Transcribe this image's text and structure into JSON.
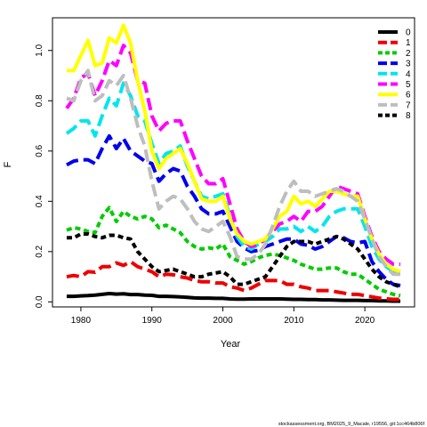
{
  "chart_data": {
    "type": "line",
    "xlabel": "Year",
    "ylabel": "F",
    "xlim": [
      1976,
      2027
    ],
    "ylim": [
      -0.02,
      1.13
    ],
    "xticks": [
      1980,
      1990,
      2000,
      2010,
      2020
    ],
    "yticks": [
      0.0,
      0.2,
      0.4,
      0.6,
      0.8,
      1.0
    ],
    "ytick_labels": [
      "0.0",
      "0.2",
      "0.4",
      "0.6",
      "0.8",
      "1.0"
    ],
    "legend_position": "top-right",
    "grid": false,
    "footer": "stockassessment.org, BM2025_9_Macale, r19556, git:1cc464b806f",
    "x": [
      1978,
      1979,
      1980,
      1981,
      1982,
      1983,
      1984,
      1985,
      1986,
      1987,
      1988,
      1989,
      1990,
      1991,
      1992,
      1993,
      1994,
      1995,
      1996,
      1997,
      1998,
      1999,
      2000,
      2001,
      2002,
      2003,
      2004,
      2005,
      2006,
      2007,
      2008,
      2009,
      2010,
      2011,
      2012,
      2013,
      2014,
      2015,
      2016,
      2017,
      2018,
      2019,
      2020,
      2021,
      2022,
      2023,
      2024,
      2025
    ],
    "series": [
      {
        "name": "0",
        "color": "#000000",
        "dash": "solid",
        "values": [
          0.022,
          0.022,
          0.024,
          0.025,
          0.027,
          0.03,
          0.033,
          0.031,
          0.032,
          0.029,
          0.029,
          0.027,
          0.026,
          0.022,
          0.022,
          0.021,
          0.02,
          0.018,
          0.016,
          0.015,
          0.015,
          0.014,
          0.014,
          0.012,
          0.011,
          0.011,
          0.012,
          0.012,
          0.012,
          0.012,
          0.012,
          0.011,
          0.01,
          0.01,
          0.009,
          0.009,
          0.008,
          0.008,
          0.007,
          0.006,
          0.006,
          0.006,
          0.005,
          0.005,
          0.004,
          0.004,
          0.003,
          0.003
        ]
      },
      {
        "name": "1",
        "color": "#ee0000",
        "dash": "long",
        "values": [
          0.1,
          0.105,
          0.1,
          0.12,
          0.118,
          0.14,
          0.14,
          0.155,
          0.145,
          0.16,
          0.14,
          0.13,
          0.12,
          0.1,
          0.11,
          0.108,
          0.1,
          0.095,
          0.085,
          0.08,
          0.08,
          0.075,
          0.075,
          0.06,
          0.055,
          0.045,
          0.055,
          0.07,
          0.085,
          0.085,
          0.085,
          0.07,
          0.07,
          0.06,
          0.055,
          0.045,
          0.045,
          0.045,
          0.04,
          0.035,
          0.03,
          0.03,
          0.025,
          0.02,
          0.015,
          0.012,
          0.01,
          0.01
        ]
      },
      {
        "name": "2",
        "color": "#00cc00",
        "dash": "dash",
        "values": [
          0.285,
          0.295,
          0.29,
          0.28,
          0.275,
          0.34,
          0.375,
          0.32,
          0.36,
          0.34,
          0.33,
          0.34,
          0.33,
          0.295,
          0.305,
          0.29,
          0.275,
          0.24,
          0.22,
          0.21,
          0.215,
          0.21,
          0.23,
          0.18,
          0.165,
          0.15,
          0.16,
          0.175,
          0.185,
          0.19,
          0.185,
          0.175,
          0.165,
          0.15,
          0.14,
          0.13,
          0.13,
          0.135,
          0.135,
          0.12,
          0.11,
          0.11,
          0.09,
          0.07,
          0.05,
          0.04,
          0.03,
          0.025
        ]
      },
      {
        "name": "3",
        "color": "#0000ee",
        "dash": "long",
        "values": [
          0.545,
          0.56,
          0.565,
          0.565,
          0.55,
          0.61,
          0.66,
          0.61,
          0.65,
          0.6,
          0.58,
          0.56,
          0.55,
          0.48,
          0.51,
          0.53,
          0.52,
          0.46,
          0.42,
          0.37,
          0.35,
          0.35,
          0.36,
          0.3,
          0.24,
          0.215,
          0.2,
          0.205,
          0.22,
          0.23,
          0.24,
          0.25,
          0.25,
          0.23,
          0.225,
          0.21,
          0.22,
          0.24,
          0.26,
          0.255,
          0.24,
          0.235,
          0.24,
          0.16,
          0.12,
          0.09,
          0.07,
          0.065
        ]
      },
      {
        "name": "4",
        "color": "#00e5ee",
        "dash": "long",
        "values": [
          0.67,
          0.69,
          0.72,
          0.72,
          0.66,
          0.74,
          0.81,
          0.78,
          0.87,
          0.82,
          0.74,
          0.72,
          0.63,
          0.55,
          0.59,
          0.6,
          0.62,
          0.54,
          0.48,
          0.42,
          0.41,
          0.42,
          0.43,
          0.34,
          0.26,
          0.22,
          0.21,
          0.23,
          0.24,
          0.26,
          0.29,
          0.29,
          0.3,
          0.28,
          0.3,
          0.28,
          0.3,
          0.34,
          0.36,
          0.37,
          0.37,
          0.37,
          0.3,
          0.22,
          0.17,
          0.14,
          0.12,
          0.12
        ]
      },
      {
        "name": "5",
        "color": "#ff00ff",
        "dash": "long",
        "values": [
          0.77,
          0.81,
          0.89,
          0.91,
          0.82,
          0.88,
          0.96,
          0.94,
          1.02,
          0.99,
          0.88,
          0.87,
          0.74,
          0.68,
          0.71,
          0.72,
          0.72,
          0.64,
          0.57,
          0.5,
          0.47,
          0.47,
          0.49,
          0.39,
          0.29,
          0.24,
          0.22,
          0.23,
          0.25,
          0.28,
          0.31,
          0.32,
          0.34,
          0.32,
          0.36,
          0.36,
          0.38,
          0.42,
          0.46,
          0.45,
          0.44,
          0.43,
          0.34,
          0.26,
          0.2,
          0.17,
          0.15,
          0.15
        ]
      },
      {
        "name": "6",
        "color": "#ffff00",
        "dash": "solid",
        "values": [
          0.92,
          0.92,
          0.98,
          1.04,
          0.94,
          0.95,
          1.05,
          1.03,
          1.1,
          1.03,
          0.88,
          0.76,
          0.6,
          0.53,
          0.57,
          0.59,
          0.61,
          0.55,
          0.48,
          0.41,
          0.4,
          0.4,
          0.42,
          0.33,
          0.27,
          0.24,
          0.23,
          0.24,
          0.25,
          0.29,
          0.34,
          0.36,
          0.42,
          0.39,
          0.4,
          0.38,
          0.41,
          0.44,
          0.44,
          0.43,
          0.42,
          0.42,
          0.33,
          0.25,
          0.19,
          0.15,
          0.13,
          0.12
        ]
      },
      {
        "name": "7",
        "color": "#bebebe",
        "dash": "long",
        "values": [
          0.81,
          0.8,
          0.88,
          0.92,
          0.8,
          0.82,
          0.88,
          0.86,
          0.9,
          0.81,
          0.7,
          0.62,
          0.48,
          0.37,
          0.4,
          0.42,
          0.41,
          0.37,
          0.32,
          0.29,
          0.28,
          0.3,
          0.32,
          0.26,
          0.18,
          0.17,
          0.17,
          0.19,
          0.23,
          0.3,
          0.38,
          0.44,
          0.48,
          0.44,
          0.44,
          0.42,
          0.43,
          0.44,
          0.45,
          0.44,
          0.42,
          0.4,
          0.33,
          0.25,
          0.18,
          0.14,
          0.11,
          0.11
        ]
      },
      {
        "name": "8",
        "color": "#000000",
        "dash": "dash",
        "values": [
          0.255,
          0.255,
          0.27,
          0.27,
          0.26,
          0.255,
          0.265,
          0.265,
          0.255,
          0.25,
          0.2,
          0.17,
          0.14,
          0.12,
          0.125,
          0.13,
          0.12,
          0.11,
          0.1,
          0.1,
          0.11,
          0.115,
          0.12,
          0.1,
          0.07,
          0.07,
          0.08,
          0.09,
          0.1,
          0.14,
          0.18,
          0.22,
          0.24,
          0.24,
          0.24,
          0.23,
          0.24,
          0.25,
          0.26,
          0.25,
          0.23,
          0.21,
          0.17,
          0.13,
          0.1,
          0.08,
          0.07,
          0.06
        ]
      }
    ]
  }
}
